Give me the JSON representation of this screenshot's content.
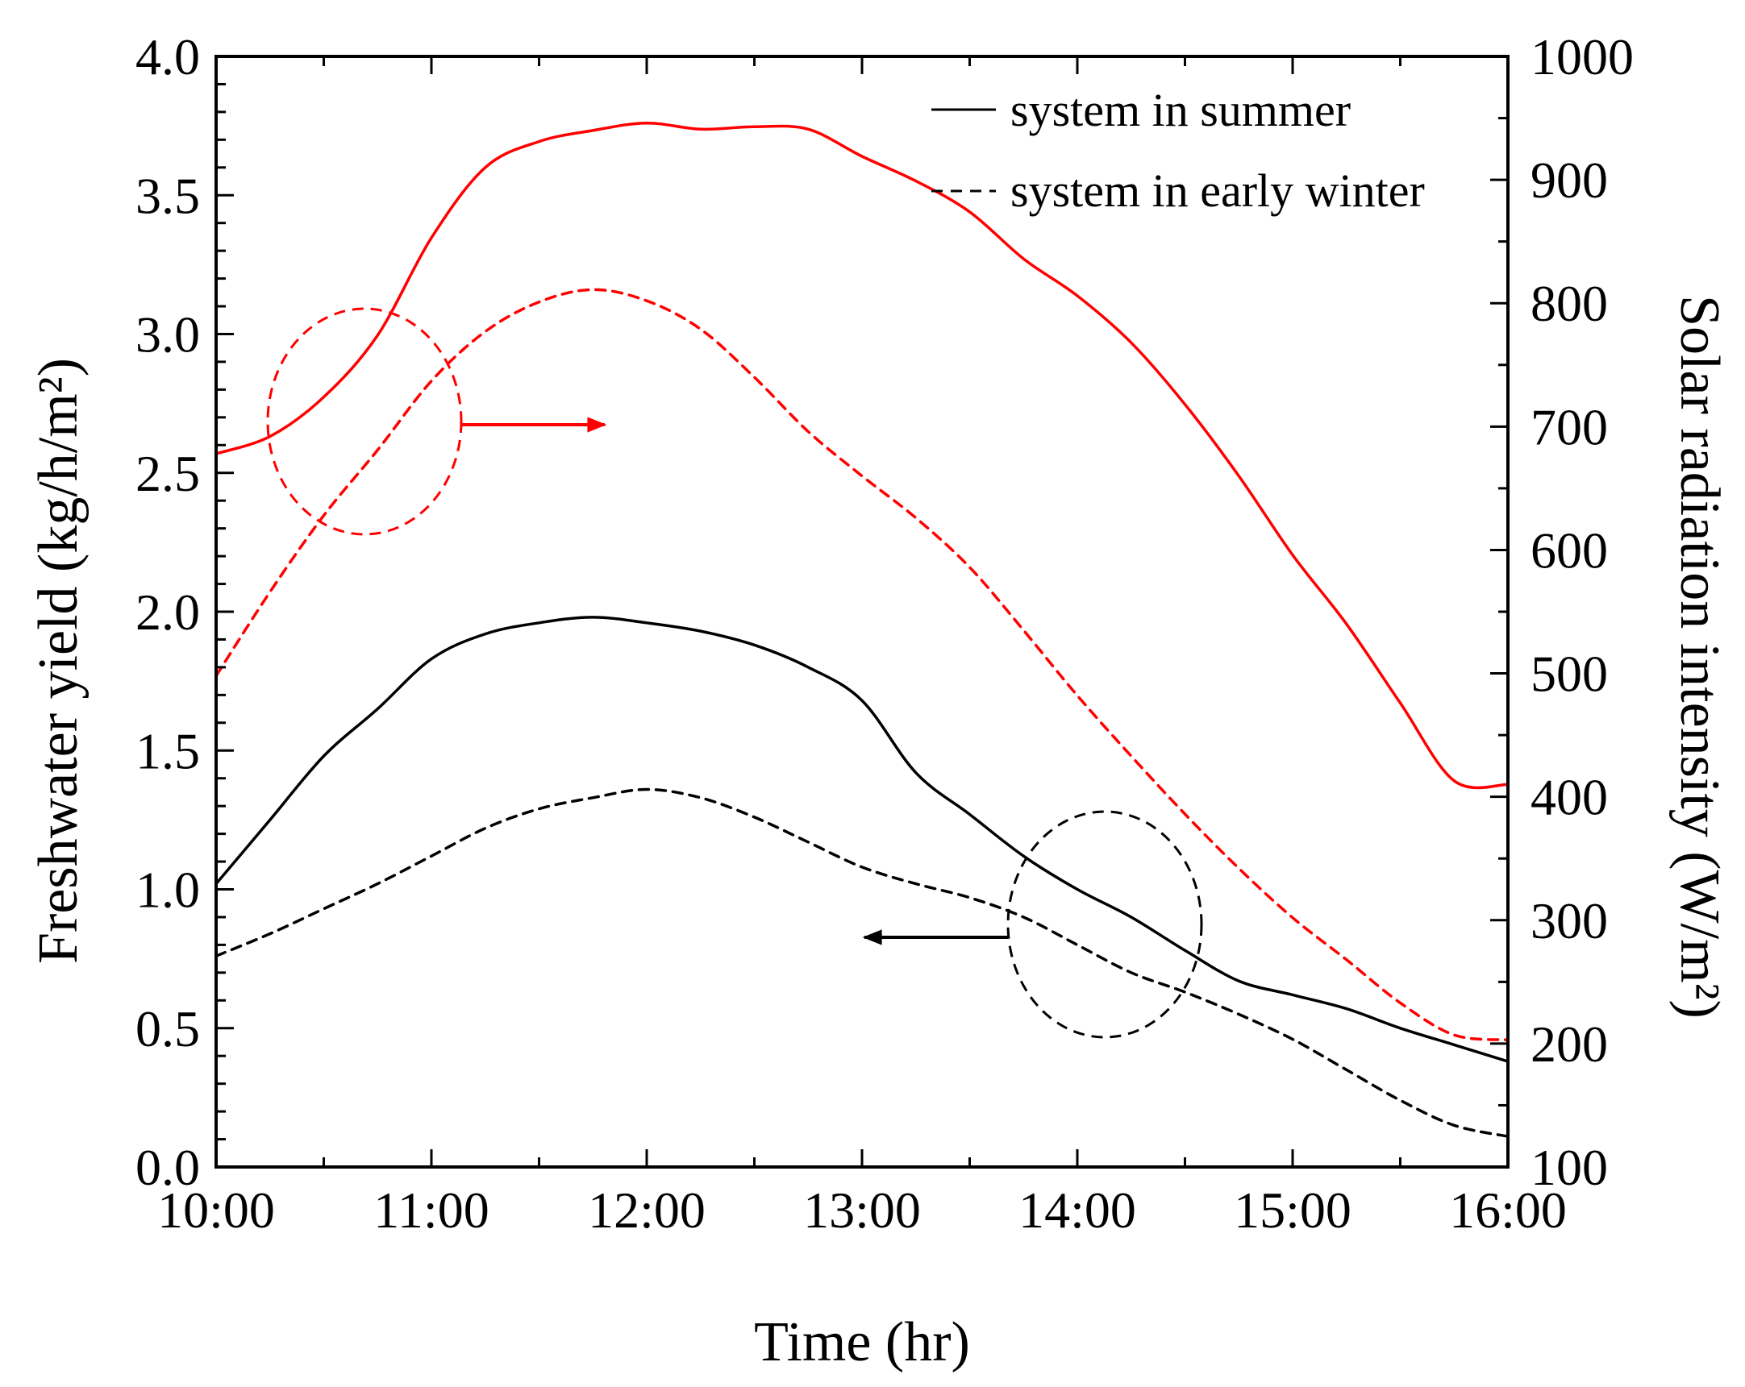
{
  "chart_data": {
    "type": "line",
    "title": "",
    "xlabel": "Time (hr)",
    "ylabel_left": "Freshwater yield (kg/h/m²)",
    "ylabel_right": "Solar radiation intensity (W/m²)",
    "x_ticks": [
      "10:00",
      "11:00",
      "12:00",
      "13:00",
      "14:00",
      "15:00",
      "16:00"
    ],
    "xlim": [
      10,
      16
    ],
    "ylim_left": [
      0,
      4
    ],
    "ylim_right": [
      100,
      1000
    ],
    "y_ticks_left": [
      "0.0",
      "0.5",
      "1.0",
      "1.5",
      "2.0",
      "2.5",
      "3.0",
      "3.5",
      "4.0"
    ],
    "y_ticks_right": [
      "100",
      "200",
      "300",
      "400",
      "500",
      "600",
      "700",
      "800",
      "900",
      "1000"
    ],
    "legend": {
      "position": "top-right",
      "entries": [
        {
          "label": "system in summer",
          "style": "solid",
          "color": "#000000"
        },
        {
          "label": "system in early winter",
          "style": "dashed",
          "color": "#000000"
        }
      ]
    },
    "series": [
      {
        "name": "system in summer (freshwater yield)",
        "axis": "left",
        "style": "solid",
        "color": "#000000",
        "x": [
          10.0,
          10.25,
          10.5,
          10.75,
          11.0,
          11.25,
          11.5,
          11.75,
          12.0,
          12.25,
          12.5,
          12.75,
          13.0,
          13.25,
          13.5,
          13.75,
          14.0,
          14.25,
          14.5,
          14.75,
          15.0,
          15.25,
          15.5,
          15.75,
          16.0
        ],
        "y": [
          1.02,
          1.25,
          1.48,
          1.65,
          1.83,
          1.92,
          1.96,
          1.98,
          1.96,
          1.93,
          1.88,
          1.8,
          1.68,
          1.42,
          1.27,
          1.12,
          1.0,
          0.9,
          0.78,
          0.67,
          0.62,
          0.57,
          0.5,
          0.44,
          0.38
        ]
      },
      {
        "name": "system in early winter (freshwater yield)",
        "axis": "left",
        "style": "dashed",
        "color": "#000000",
        "x": [
          10.0,
          10.25,
          10.5,
          10.75,
          11.0,
          11.25,
          11.5,
          11.75,
          12.0,
          12.25,
          12.5,
          12.75,
          13.0,
          13.25,
          13.5,
          13.75,
          14.0,
          14.25,
          14.5,
          14.75,
          15.0,
          15.25,
          15.5,
          15.75,
          16.0
        ],
        "y": [
          0.76,
          0.84,
          0.93,
          1.02,
          1.12,
          1.22,
          1.29,
          1.33,
          1.36,
          1.33,
          1.26,
          1.17,
          1.08,
          1.02,
          0.97,
          0.9,
          0.8,
          0.7,
          0.63,
          0.55,
          0.46,
          0.35,
          0.24,
          0.15,
          0.11
        ]
      },
      {
        "name": "system in summer (solar radiation)",
        "axis": "right",
        "style": "solid",
        "color": "#ff0000",
        "x": [
          10.0,
          10.25,
          10.5,
          10.75,
          11.0,
          11.25,
          11.5,
          11.75,
          12.0,
          12.25,
          12.5,
          12.75,
          13.0,
          13.25,
          13.5,
          13.75,
          14.0,
          14.25,
          14.5,
          14.75,
          15.0,
          15.25,
          15.5,
          15.75,
          16.0
        ],
        "y": [
          678,
          692,
          724,
          774,
          853,
          910,
          931,
          940,
          946,
          941,
          943,
          941,
          919,
          899,
          874,
          836,
          806,
          768,
          718,
          660,
          596,
          540,
          476,
          413,
          410
        ]
      },
      {
        "name": "system in early winter (solar radiation)",
        "axis": "right",
        "style": "dashed",
        "color": "#ff0000",
        "x": [
          10.0,
          10.25,
          10.5,
          10.75,
          11.0,
          11.25,
          11.5,
          11.75,
          12.0,
          12.25,
          12.5,
          12.75,
          13.0,
          13.25,
          13.5,
          13.75,
          14.0,
          14.25,
          14.5,
          14.75,
          15.0,
          15.25,
          15.5,
          15.75,
          16.0
        ],
        "y": [
          498,
          566,
          628,
          681,
          737,
          777,
          801,
          811,
          802,
          779,
          740,
          696,
          660,
          626,
          586,
          535,
          482,
          433,
          386,
          342,
          302,
          268,
          233,
          207,
          203
        ]
      }
    ],
    "annotations": [
      {
        "type": "circle-arrow",
        "target_axis": "right",
        "arrow_direction": "right",
        "color": "#ff0000"
      },
      {
        "type": "circle-arrow",
        "target_axis": "left",
        "arrow_direction": "left",
        "color": "#000000"
      }
    ]
  }
}
